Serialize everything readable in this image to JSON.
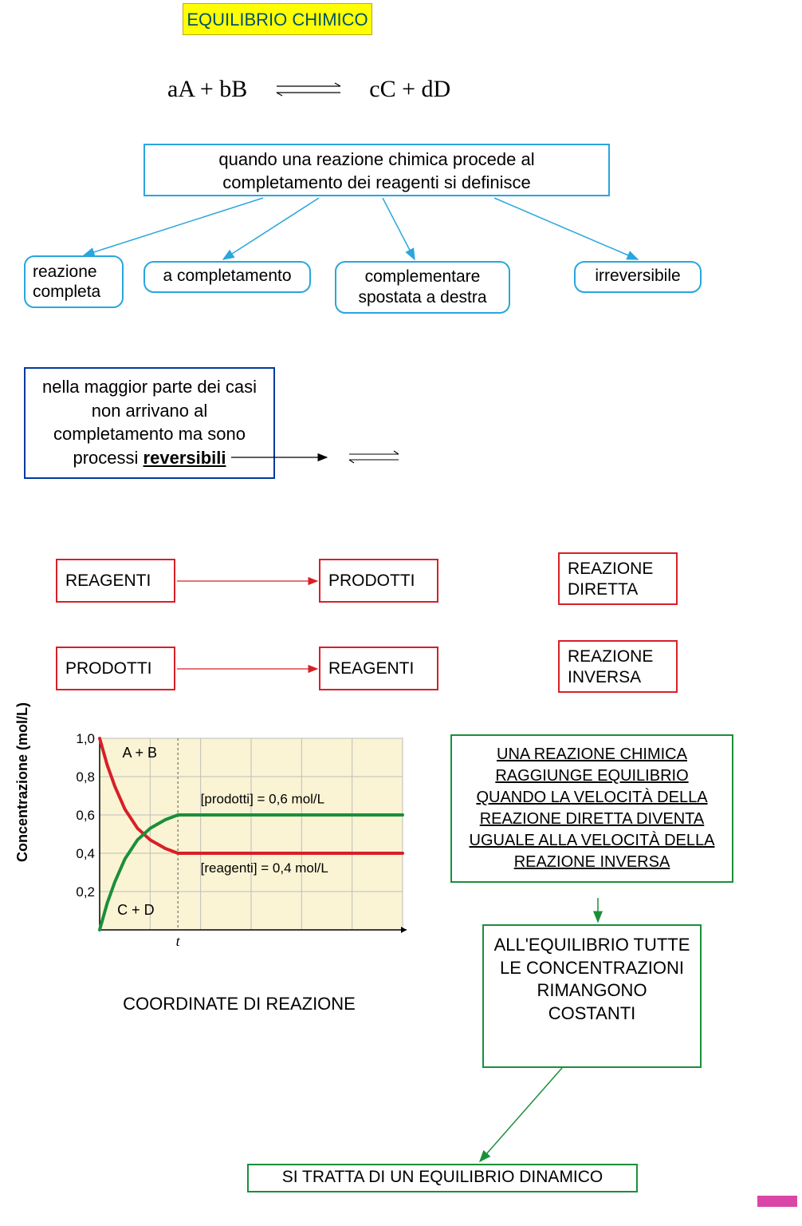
{
  "title": {
    "text": "EQUILIBRIO CHIMICO",
    "bg": "#ffff00",
    "border": "#bfa800",
    "color": "#00506b",
    "fontsize": 22
  },
  "equation": {
    "left": "aA + bB",
    "right": "cC + dD",
    "fontsize": 30,
    "fontfamily": "'Times New Roman', serif"
  },
  "definition_box": {
    "line1": "quando una reazione chimica procede al",
    "line2": "completamento dei reagenti si definisce",
    "border": "#29a6dd",
    "fontsize": 22
  },
  "children": [
    {
      "label": "reazione\ncompleta"
    },
    {
      "label": "a completamento"
    },
    {
      "label": "complementare\nspostata a destra"
    },
    {
      "label": "irreversibile"
    }
  ],
  "children_style": {
    "border": "#29a6dd",
    "radius": 12,
    "fontsize": 21,
    "color": "#000000"
  },
  "arrows_cyan": {
    "stroke": "#29a6dd",
    "width": 1.5
  },
  "reversible_box": {
    "line1": "nella maggior parte dei casi",
    "line2": "non arrivano al",
    "line3": "completamento ma sono",
    "line4a": "processi ",
    "line4b": "reversibili",
    "border": "#003a9e",
    "fontsize": 22
  },
  "red_scheme": {
    "border": "#d72027",
    "fontsize": 21,
    "reagenti": "REAGENTI",
    "prodotti": "PRODOTTI",
    "reazione_diretta_l1": "REAZIONE",
    "reazione_diretta_l2": "DIRETTA",
    "reazione_inversa_l1": "REAZIONE",
    "reazione_inversa_l2": "INVERSA",
    "arrow_stroke": "#d72027"
  },
  "chart": {
    "type": "line",
    "bg": "#faf4d4",
    "border": "#7a7a7a",
    "xlabel_t": "t",
    "ylabel": "Concentrazione (mol/L)",
    "ylabel_fontsize": 18,
    "yticks": [
      "0,2",
      "0,4",
      "0,6",
      "0,8",
      "1,0"
    ],
    "ytick_values": [
      0.2,
      0.4,
      0.6,
      0.8,
      1.0
    ],
    "ylim": [
      0,
      1.0
    ],
    "xlim": [
      0,
      6
    ],
    "grid_color": "#bdbdbd",
    "t_position_x": 1.55,
    "series": [
      {
        "name": "reagents",
        "color": "#d72027",
        "label_inside": "A + B",
        "eq_label": "[reagenti] = 0,4 mol/L",
        "eq_value": 0.4,
        "points_x": [
          0,
          0.15,
          0.3,
          0.5,
          0.75,
          1.0,
          1.3,
          1.55,
          1.8,
          6
        ],
        "points_y": [
          1.0,
          0.86,
          0.75,
          0.63,
          0.53,
          0.47,
          0.425,
          0.4,
          0.4,
          0.4
        ],
        "line_width": 4
      },
      {
        "name": "products",
        "color": "#1a8f3a",
        "label_inside": "C + D",
        "eq_label": "[prodotti] = 0,6 mol/L",
        "eq_value": 0.6,
        "points_x": [
          0,
          0.15,
          0.3,
          0.5,
          0.75,
          1.0,
          1.3,
          1.55,
          1.8,
          6
        ],
        "points_y": [
          0.0,
          0.14,
          0.25,
          0.37,
          0.47,
          0.53,
          0.575,
          0.6,
          0.6,
          0.6
        ],
        "line_width": 4
      }
    ],
    "caption": "COORDINATE DI REAZIONE",
    "caption_fontsize": 22
  },
  "green_boxes": {
    "border": "#1a8f3a",
    "fontsize": 20,
    "box1": "UNA REAZIONE CHIMICA RAGGIUNGE EQUILIBRIO QUANDO LA VELOCITÀ DELLA REAZIONE DIRETTA DIVENTA UGUALE ALLA VELOCITÀ DELLA REAZIONE INVERSA",
    "box2": "ALL'EQUILIBRIO TUTTE LE CONCENTRAZIONI RIMANGONO COSTANTI",
    "box3": "SI TRATTA DI UN EQUILIBRIO DINAMICO",
    "arrow_stroke": "#1a8f3a"
  },
  "magenta_mark": {
    "color": "#d946a6"
  }
}
